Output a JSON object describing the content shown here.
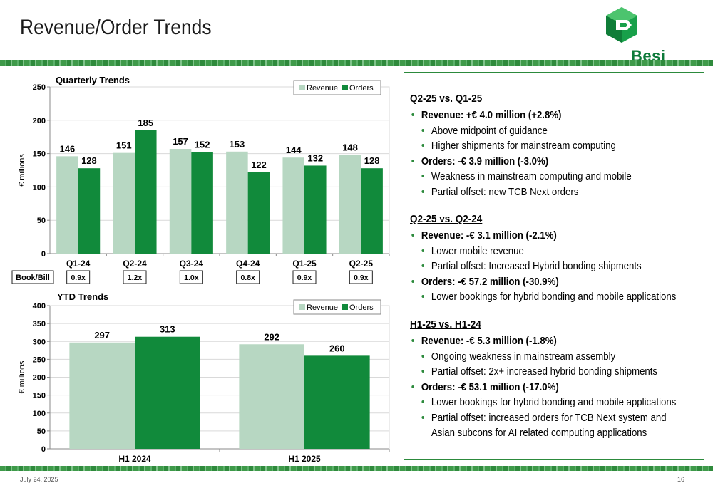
{
  "page": {
    "title": "Revenue/Order Trends",
    "date": "July 24, 2025",
    "page_number": "16",
    "logo_text": "Besi"
  },
  "colors": {
    "revenue": "#b7d7c2",
    "orders": "#118a3b",
    "frame": "#2c8a3c"
  },
  "chart_data": [
    {
      "type": "bar",
      "title": "Quarterly Trends",
      "ylabel": "€ millions",
      "ylim": [
        0,
        250
      ],
      "yticks": [
        0,
        50,
        100,
        150,
        200,
        250
      ],
      "categories": [
        "Q1-24",
        "Q2-24",
        "Q3-24",
        "Q4-24",
        "Q1-25",
        "Q2-25"
      ],
      "series": [
        {
          "name": "Revenue",
          "values": [
            146,
            151,
            157,
            153,
            144,
            148
          ]
        },
        {
          "name": "Orders",
          "values": [
            128,
            185,
            152,
            122,
            132,
            128
          ]
        }
      ],
      "book_bill_label": "Book/Bill",
      "book_bill": [
        "0.9x",
        "1.2x",
        "1.0x",
        "0.8x",
        "0.9x",
        "0.9x"
      ],
      "legend": "top-right",
      "grid": true
    },
    {
      "type": "bar",
      "title": "YTD Trends",
      "ylabel": "€ millions",
      "ylim": [
        0,
        400
      ],
      "yticks": [
        0,
        50,
        100,
        150,
        200,
        250,
        300,
        350,
        400
      ],
      "categories": [
        "H1 2024",
        "H1 2025"
      ],
      "series": [
        {
          "name": "Revenue",
          "values": [
            297,
            292
          ]
        },
        {
          "name": "Orders",
          "values": [
            313,
            260
          ]
        }
      ],
      "legend": "top-right",
      "grid": true
    }
  ],
  "sections": [
    {
      "heading": "Q2-25 vs. Q1-25",
      "items": [
        {
          "level": 1,
          "text": "Revenue: +€ 4.0 million (+2.8%)"
        },
        {
          "level": 2,
          "text": "Above midpoint of guidance"
        },
        {
          "level": 2,
          "text": "Higher shipments for mainstream computing"
        },
        {
          "level": 1,
          "text": "Orders: -€ 3.9 million (-3.0%)"
        },
        {
          "level": 2,
          "text": "Weakness in mainstream computing and mobile"
        },
        {
          "level": 2,
          "text": "Partial offset: new TCB Next orders"
        }
      ]
    },
    {
      "heading": "Q2-25 vs. Q2-24",
      "items": [
        {
          "level": 1,
          "text": "Revenue: -€ 3.1 million (-2.1%)"
        },
        {
          "level": 2,
          "text": "Lower mobile revenue"
        },
        {
          "level": 2,
          "text": "Partial offset: Increased Hybrid bonding shipments"
        },
        {
          "level": 1,
          "text": "Orders: -€ 57.2 million (-30.9%)"
        },
        {
          "level": 2,
          "text": "Lower bookings for hybrid bonding and mobile applications"
        }
      ]
    },
    {
      "heading": "H1-25 vs. H1-24",
      "items": [
        {
          "level": 1,
          "text": "Revenue: -€ 5.3 million (-1.8%)"
        },
        {
          "level": 2,
          "text": "Ongoing weakness in mainstream assembly"
        },
        {
          "level": 2,
          "text": "Partial offset: 2x+ increased hybrid bonding shipments"
        },
        {
          "level": 1,
          "text": "Orders: -€ 53.1 million (-17.0%)"
        },
        {
          "level": 2,
          "text": "Lower bookings for hybrid bonding and mobile applications"
        },
        {
          "level": 2,
          "text": "Partial offset: increased orders for TCB Next system and"
        },
        {
          "level": 2,
          "text": "Asian subcons for AI related computing applications",
          "continuation": true
        }
      ]
    }
  ]
}
